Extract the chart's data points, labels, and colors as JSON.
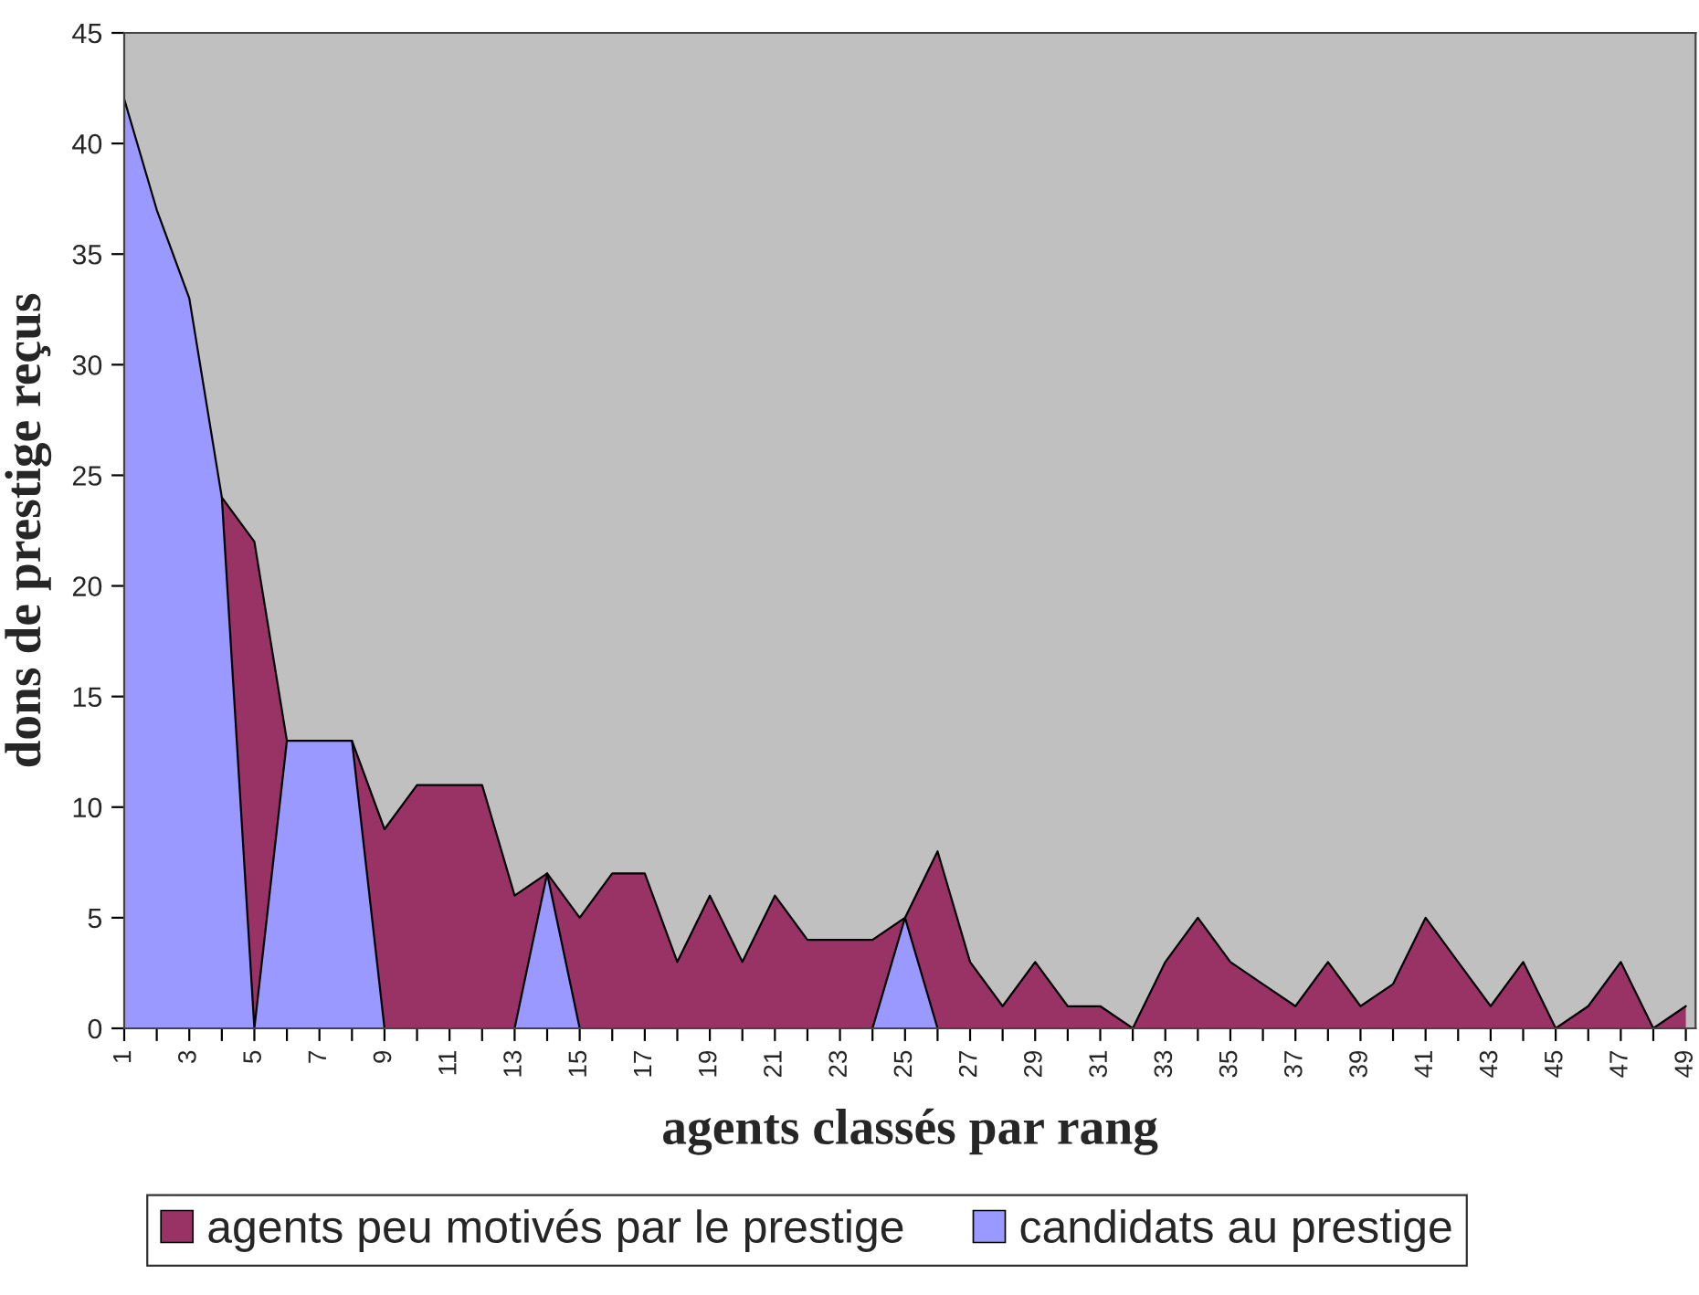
{
  "chart_data": {
    "type": "area",
    "xlabel": "agents classés par rang",
    "ylabel": "dons de prestige reçus",
    "categories": [
      "1",
      null,
      "3",
      null,
      "5",
      null,
      "7",
      null,
      "9",
      null,
      "11",
      null,
      "13",
      null,
      "15",
      null,
      "17",
      null,
      "19",
      null,
      "21",
      null,
      "23",
      null,
      "25",
      null,
      "27",
      null,
      "29",
      null,
      "31",
      null,
      "33",
      null,
      "35",
      null,
      "37",
      null,
      "39",
      null,
      "41",
      null,
      "43",
      null,
      "45",
      null,
      "47",
      null,
      "49"
    ],
    "series": [
      {
        "name": "agents peu motivés par le prestige",
        "color": "#993366",
        "values": [
          null,
          null,
          null,
          24,
          22,
          13,
          null,
          13,
          9,
          11,
          11,
          11,
          6,
          7,
          5,
          7,
          7,
          3,
          6,
          3,
          6,
          4,
          4,
          4,
          5,
          8,
          3,
          1,
          3,
          1,
          1,
          0,
          3,
          5,
          3,
          2,
          1,
          3,
          1,
          2,
          5,
          3,
          1,
          3,
          0,
          1,
          3,
          0,
          1
        ]
      },
      {
        "name": "candidats au prestige",
        "color": "#9999ff",
        "values": [
          42,
          37,
          33,
          24,
          0,
          13,
          13,
          13,
          0,
          0,
          0,
          0,
          0,
          7,
          0,
          0,
          0,
          0,
          0,
          0,
          0,
          0,
          0,
          0,
          5,
          0,
          0,
          0,
          0,
          0,
          0,
          0,
          0,
          0,
          0,
          0,
          0,
          0,
          0,
          0,
          0,
          0,
          0,
          0,
          0,
          0,
          0,
          0,
          0
        ]
      }
    ],
    "ylim": [
      0,
      45
    ],
    "yticks": [
      0,
      5,
      10,
      15,
      20,
      25,
      30,
      35,
      40,
      45
    ],
    "grid": false,
    "legend": "bottom"
  }
}
